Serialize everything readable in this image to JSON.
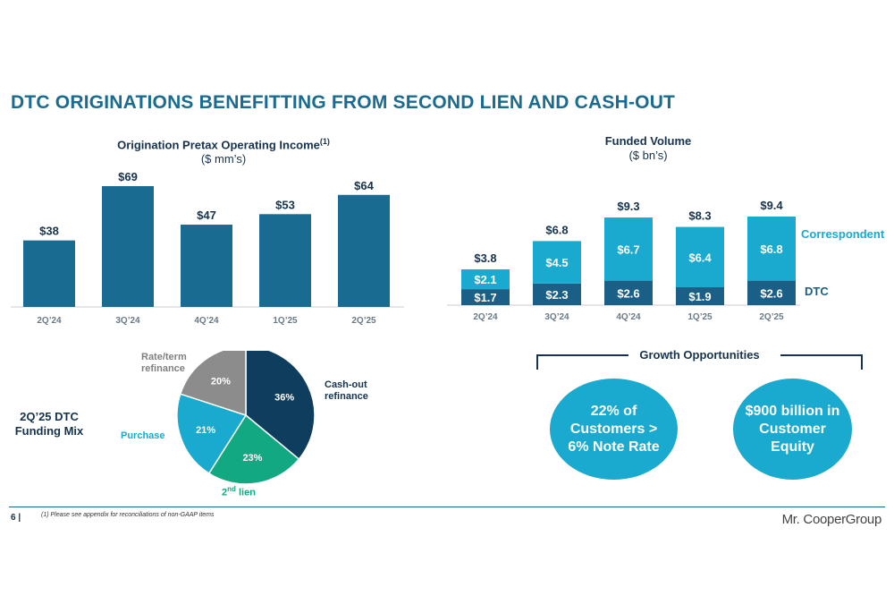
{
  "slide": {
    "title": "DTC ORIGINATIONS BENEFITTING FROM SECOND LIEN AND CASH-OUT",
    "page_number": "6 |",
    "footnote": "(1) Please see appendix for reconciliations of non-GAAP items",
    "logo": "Mr. CooperGroup"
  },
  "colors": {
    "title_blue": "#1a6b91",
    "bar_dark": "#1a6b91",
    "dtc_dark": "#1b5e86",
    "correspondent": "#1aa9cf",
    "pie_cashout": "#0e3d5e",
    "pie_second_lien": "#12a882",
    "pie_purchase": "#1aa9cf",
    "pie_rate_term": "#8c8c8c"
  },
  "chart_data": [
    {
      "type": "bar",
      "title": "Origination Pretax Operating Income",
      "title_sup": "(1)",
      "subtitle": "($ mm’s)",
      "categories": [
        "2Q’24",
        "3Q’24",
        "4Q’24",
        "1Q’25",
        "2Q’25"
      ],
      "values": [
        38,
        69,
        47,
        53,
        64
      ],
      "data_labels": [
        "$38",
        "$69",
        "$47",
        "$53",
        "$64"
      ],
      "ylim": [
        0,
        69
      ]
    },
    {
      "type": "bar",
      "stacked": true,
      "title": "Funded Volume",
      "subtitle": "($ bn’s)",
      "categories": [
        "2Q’24",
        "3Q’24",
        "4Q’24",
        "1Q’25",
        "2Q’25"
      ],
      "totals": [
        "$3.8",
        "$6.8",
        "$9.3",
        "$8.3",
        "$9.4"
      ],
      "series": [
        {
          "name": "DTC",
          "values": [
            1.7,
            2.3,
            2.6,
            1.9,
            2.6
          ],
          "labels": [
            "$1.7",
            "$2.3",
            "$2.6",
            "$1.9",
            "$2.6"
          ]
        },
        {
          "name": "Correspondent",
          "values": [
            2.1,
            4.5,
            6.7,
            6.4,
            6.8
          ],
          "labels": [
            "$2.1",
            "$4.5",
            "$6.7",
            "$6.4",
            "$6.8"
          ]
        }
      ],
      "ylim": [
        0,
        9.4
      ]
    },
    {
      "type": "pie",
      "title": "2Q’25 DTC Funding Mix",
      "slices": [
        {
          "name": "Cash-out refinance",
          "value": 36,
          "label": "36%"
        },
        {
          "name": "2nd lien",
          "value": 23,
          "label": "23%"
        },
        {
          "name": "Purchase",
          "value": 21,
          "label": "21%"
        },
        {
          "name": "Rate/term refinance",
          "value": 20,
          "label": "20%"
        }
      ]
    }
  ],
  "growth": {
    "title": "Growth Opportunities",
    "items": [
      "22% of Customers > 6% Note Rate",
      "$900 billion in Customer Equity"
    ]
  }
}
